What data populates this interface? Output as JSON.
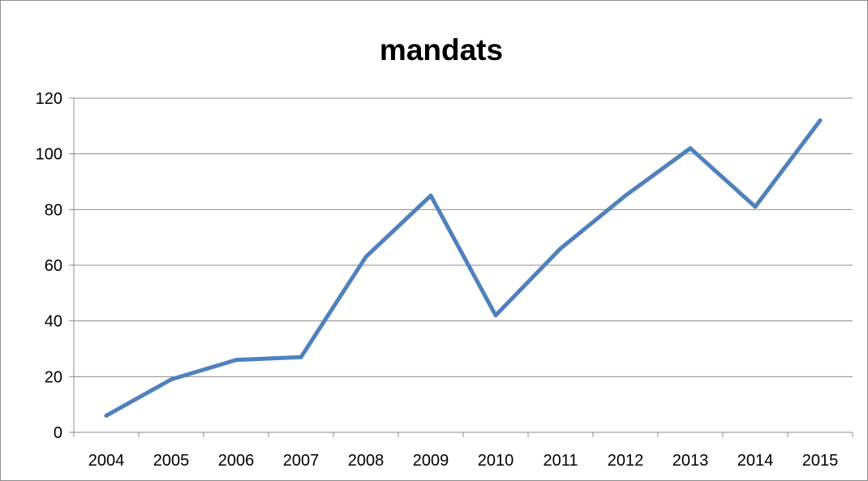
{
  "chart_data": {
    "type": "line",
    "title": "mandats",
    "xlabel": "",
    "ylabel": "",
    "categories": [
      "2004",
      "2005",
      "2006",
      "2007",
      "2008",
      "2009",
      "2010",
      "2011",
      "2012",
      "2013",
      "2014",
      "2015"
    ],
    "series": [
      {
        "values": [
          6,
          19,
          26,
          27,
          63,
          85,
          42,
          66,
          85,
          102,
          81,
          112
        ],
        "color": "#4f81bd"
      }
    ],
    "ylim": [
      0,
      120
    ],
    "yticks": [
      "0",
      "20",
      "40",
      "60",
      "80",
      "100",
      "120"
    ],
    "grid": true,
    "legend": "none"
  }
}
